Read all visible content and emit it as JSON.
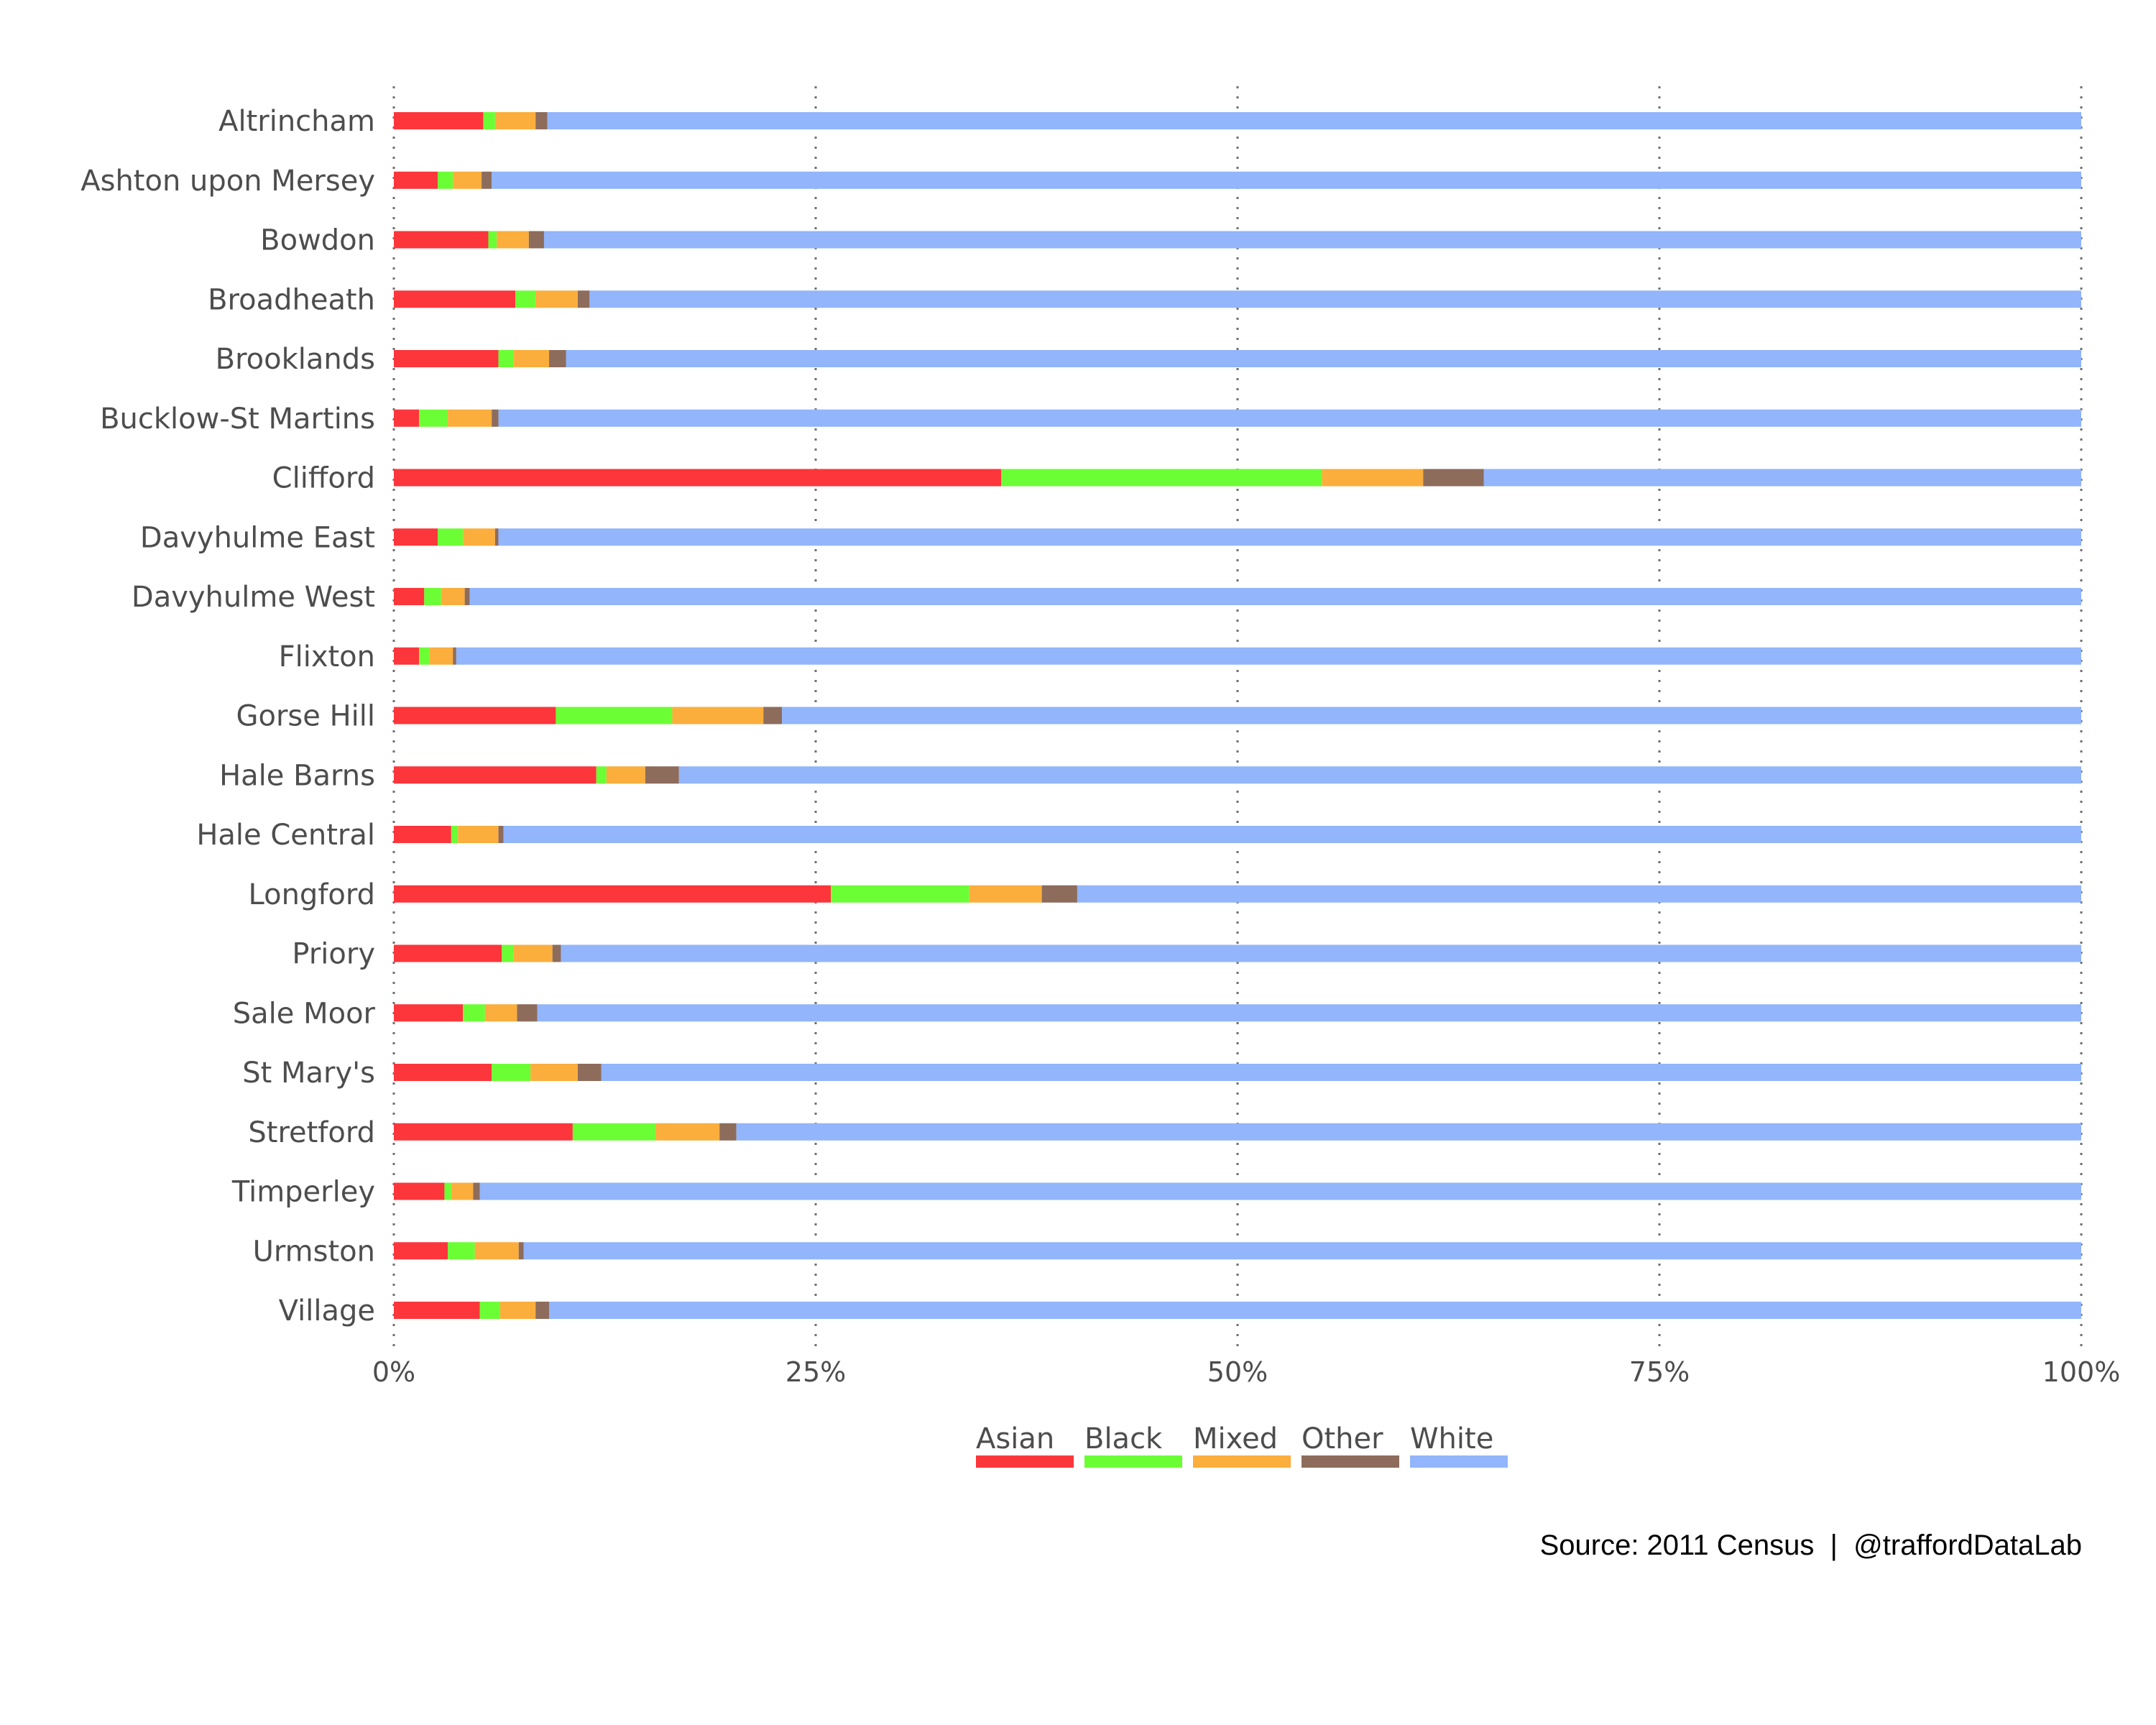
{
  "chart_data": {
    "type": "bar",
    "orientation": "horizontal",
    "stacked": "percent",
    "title": "",
    "xlabel": "",
    "ylabel": "",
    "xlim": [
      0,
      100
    ],
    "x_ticks": [
      "0%",
      "25%",
      "50%",
      "75%",
      "100%"
    ],
    "grid": "vertical dotted",
    "legend_position": "bottom",
    "categories": [
      "Altrincham",
      "Ashton upon Mersey",
      "Bowdon",
      "Broadheath",
      "Brooklands",
      "Bucklow-St Martins",
      "Clifford",
      "Davyhulme East",
      "Davyhulme West",
      "Flixton",
      "Gorse Hill",
      "Hale Barns",
      "Hale Central",
      "Longford",
      "Priory",
      "Sale Moor",
      "St Mary's",
      "Stretford",
      "Timperley",
      "Urmston",
      "Village"
    ],
    "series": [
      {
        "name": "Asian",
        "color": "#fc363b",
        "values": [
          5.3,
          2.6,
          5.6,
          7.2,
          6.2,
          1.5,
          36.0,
          2.6,
          1.8,
          1.5,
          9.6,
          12.0,
          3.4,
          25.9,
          6.4,
          4.1,
          5.8,
          10.6,
          3.0,
          3.2,
          5.1
        ]
      },
      {
        "name": "Black",
        "color": "#6cfe35",
        "values": [
          0.7,
          0.9,
          0.5,
          1.2,
          0.9,
          1.7,
          19.0,
          1.5,
          1.0,
          0.6,
          6.9,
          0.6,
          0.4,
          8.2,
          0.7,
          1.3,
          2.3,
          4.9,
          0.4,
          1.6,
          1.2
        ]
      },
      {
        "name": "Mixed",
        "color": "#fbae3c",
        "values": [
          2.4,
          1.7,
          1.9,
          2.5,
          2.1,
          2.6,
          6.0,
          1.9,
          1.4,
          1.4,
          5.4,
          2.3,
          2.4,
          4.3,
          2.3,
          1.9,
          2.8,
          3.8,
          1.3,
          2.6,
          2.1
        ]
      },
      {
        "name": "Other",
        "color": "#8d6c5c",
        "values": [
          0.7,
          0.6,
          0.9,
          0.7,
          1.0,
          0.4,
          3.6,
          0.2,
          0.3,
          0.2,
          1.1,
          2.0,
          0.3,
          2.1,
          0.5,
          1.2,
          1.4,
          1.0,
          0.4,
          0.3,
          0.8
        ]
      },
      {
        "name": "White",
        "color": "#92b5fb",
        "values": [
          90.9,
          94.2,
          91.1,
          88.4,
          89.8,
          93.8,
          35.4,
          93.8,
          95.5,
          96.3,
          77.0,
          83.1,
          93.5,
          59.5,
          90.1,
          91.5,
          87.7,
          79.7,
          94.9,
          92.3,
          90.8
        ]
      }
    ]
  },
  "caption": "Source: 2011 Census  |  @traffordDataLab"
}
